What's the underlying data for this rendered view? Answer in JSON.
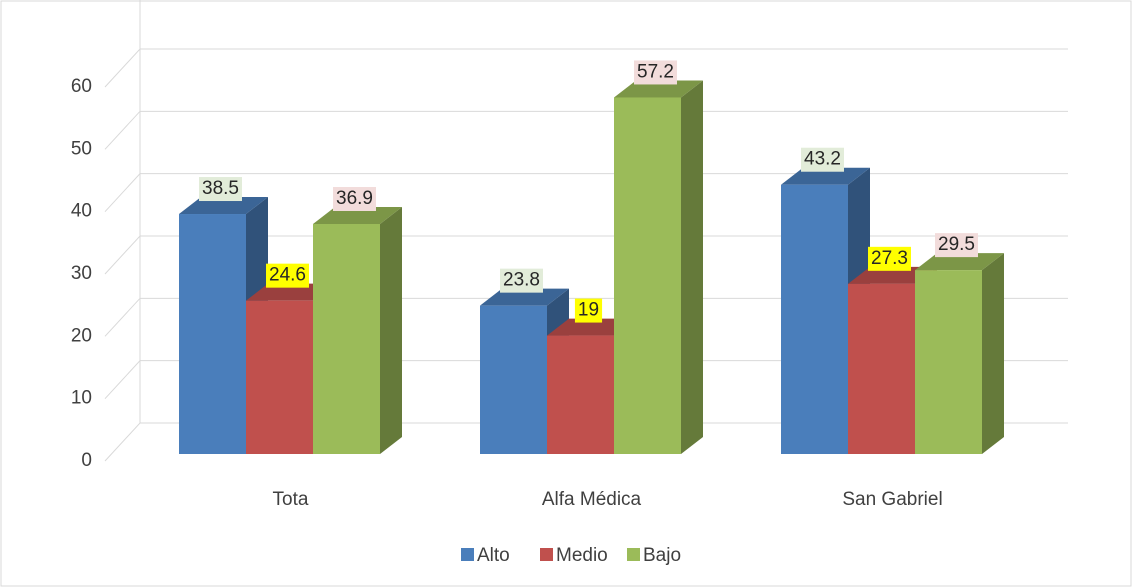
{
  "chart_data": {
    "type": "bar3d",
    "categories": [
      "Tota",
      "Alfa Médica",
      "San Gabriel"
    ],
    "series": [
      {
        "name": "Alto",
        "color": "#4a7ebb",
        "values": [
          38.5,
          23.8,
          43.2
        ]
      },
      {
        "name": "Medio",
        "color": "#c0504d",
        "values": [
          24.6,
          19,
          27.3
        ]
      },
      {
        "name": "Bajo",
        "color": "#9bbb59",
        "values": [
          36.9,
          57.2,
          29.5
        ]
      }
    ],
    "ylim": [
      0,
      60
    ],
    "yticks": [
      0,
      10,
      20,
      30,
      40,
      50,
      60
    ],
    "grid": true,
    "legend": "bottom"
  }
}
